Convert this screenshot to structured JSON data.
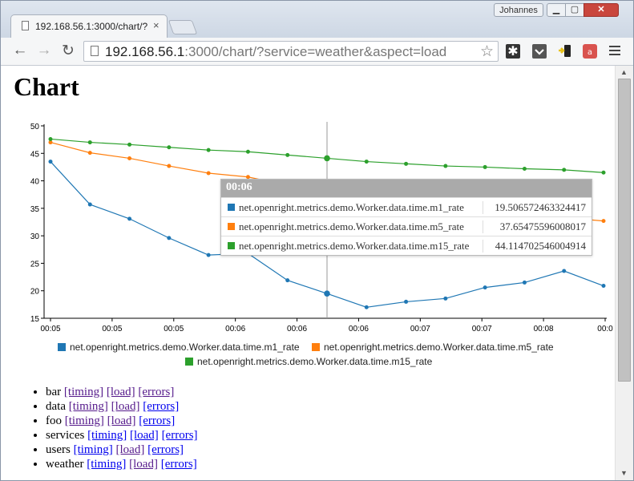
{
  "browser": {
    "tab_title": "192.168.56.1:3000/chart/?",
    "tab_close": "×",
    "user": "Johannes",
    "window_buttons": {
      "minimize": "▁",
      "maximize": "▢",
      "close": "✕"
    },
    "url_host": "192.168.56.1",
    "url_rest": ":3000/chart/?service=weather&aspect=load",
    "nav": {
      "back": "←",
      "forward": "→",
      "reload": "↻"
    },
    "star": "☆",
    "extensions": [
      "asterisk-icon",
      "pocket-icon",
      "phone-arrow-icon",
      "lastpass-icon"
    ]
  },
  "page": {
    "title": "Chart"
  },
  "chart_data": {
    "type": "line",
    "x": [
      "00:05",
      "00:05",
      "00:05",
      "00:05",
      "00:06",
      "00:06",
      "00:06",
      "00:06",
      "00:07",
      "00:07",
      "00:07",
      "00:07",
      "00:08",
      "00:08",
      "00:08"
    ],
    "x_tick_labels": [
      "00:05",
      "00:05",
      "00:05",
      "00:06",
      "00:06",
      "00:06",
      "00:07",
      "00:07",
      "00:08",
      "00:0"
    ],
    "ylim": [
      15,
      50
    ],
    "y_ticks": [
      15,
      20,
      25,
      30,
      35,
      40,
      45,
      50
    ],
    "series": [
      {
        "name": "net.openright.metrics.demo.Worker.data.time.m1_rate",
        "color": "#1f77b4",
        "values": [
          43.5,
          35.7,
          33.1,
          29.6,
          26.5,
          26.8,
          21.9,
          19.5,
          17.0,
          18.0,
          18.6,
          20.6,
          21.5,
          23.6,
          20.9
        ]
      },
      {
        "name": "net.openright.metrics.demo.Worker.data.time.m5_rate",
        "color": "#ff7f0e",
        "values": [
          47.0,
          45.1,
          44.1,
          42.7,
          41.4,
          40.7,
          39.2,
          37.7,
          36.6,
          35.6,
          34.8,
          34.2,
          33.7,
          33.3,
          32.7
        ]
      },
      {
        "name": "net.openright.metrics.demo.Worker.data.time.m15_rate",
        "color": "#2ca02c",
        "values": [
          47.6,
          47.0,
          46.6,
          46.1,
          45.6,
          45.3,
          44.7,
          44.1,
          43.5,
          43.1,
          42.7,
          42.5,
          42.2,
          42.0,
          41.5
        ]
      }
    ],
    "hover_index": 7,
    "legend_position": "bottom"
  },
  "tooltip": {
    "header": "00:06",
    "rows": [
      {
        "name": "net.openright.metrics.demo.Worker.data.time.m1_rate",
        "value": "19.506572463324417",
        "color": "#1f77b4"
      },
      {
        "name": "net.openright.metrics.demo.Worker.data.time.m5_rate",
        "value": "37.65475596008017",
        "color": "#ff7f0e"
      },
      {
        "name": "net.openright.metrics.demo.Worker.data.time.m15_rate",
        "value": "44.114702546004914",
        "color": "#2ca02c"
      }
    ]
  },
  "services": [
    {
      "name": "bar",
      "links": [
        "[timing]",
        "[load]",
        "[errors]"
      ]
    },
    {
      "name": "data",
      "links": [
        "[timing]",
        "[load]",
        "[errors]"
      ]
    },
    {
      "name": "foo",
      "links": [
        "[timing]",
        "[load]",
        "[errors]"
      ]
    },
    {
      "name": "services",
      "links": [
        "[timing]",
        "[load]",
        "[errors]"
      ]
    },
    {
      "name": "users",
      "links": [
        "[timing]",
        "[load]",
        "[errors]"
      ]
    },
    {
      "name": "weather",
      "links": [
        "[timing]",
        "[load]",
        "[errors]"
      ]
    }
  ]
}
